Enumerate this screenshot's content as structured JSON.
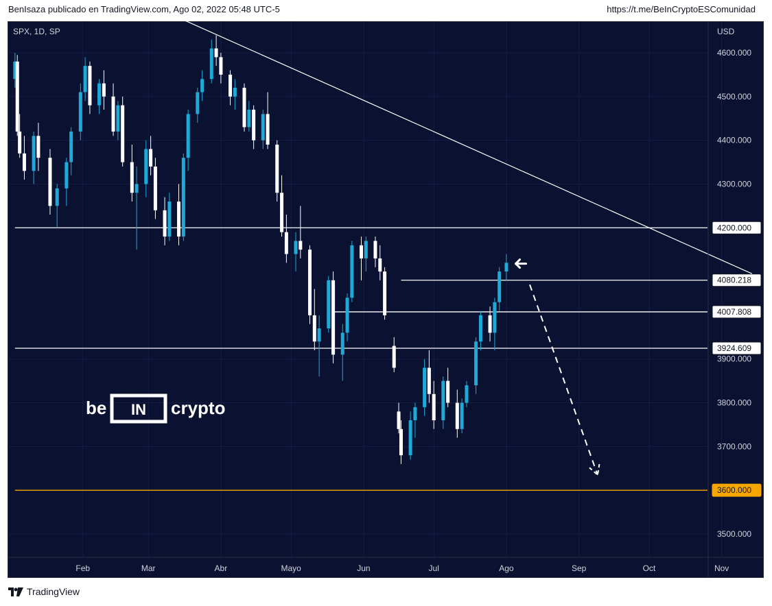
{
  "header": {
    "publisher_line": "BenIsaza publicado en TradingView.com, Ago 02, 2022 05:48 UTC-5",
    "link": "https://t.me/BeInCryptoESComunidad"
  },
  "footer": {
    "brand": "TradingView",
    "logo_icon": "tradingview-logo-icon"
  },
  "watermark": {
    "text_left": "be",
    "text_box": "IN",
    "text_right": "crypto"
  },
  "colors": {
    "background": "#0b1131",
    "bull": "#1fa9d6",
    "bear": "#ffffff",
    "support_line": "#ffffff",
    "target_line": "#f7a600",
    "target_label_bg": "#f7a600"
  },
  "chart_data": {
    "type": "candlestick",
    "symbol_label": "SPX, 1D, SP",
    "currency": "USD",
    "y_ticks": [
      "4600.000",
      "4500.000",
      "4400.000",
      "4300.000",
      "3900.000",
      "3800.000",
      "3700.000",
      "3500.000"
    ],
    "y_tick_values": [
      4600,
      4500,
      4400,
      4300,
      3900,
      3800,
      3700,
      3500
    ],
    "x_ticks": [
      "Feb",
      "Mar",
      "Abr",
      "Mayo",
      "Jun",
      "Jul",
      "Ago",
      "Sep",
      "Oct",
      "Nov"
    ],
    "ylim": [
      3430,
      4660
    ],
    "horizontal_levels": [
      {
        "label": "4200.000",
        "value": 4200,
        "style": "solid",
        "color": "#ffffff",
        "start_date": "2022-01-03"
      },
      {
        "label": "4080.218",
        "value": 4080.218,
        "style": "solid",
        "color": "#ffffff",
        "start_date": "2022-06-17"
      },
      {
        "label": "4007.808",
        "value": 4007.808,
        "style": "solid",
        "color": "#ffffff",
        "start_date": "2022-05-19"
      },
      {
        "label": "3924.609",
        "value": 3924.609,
        "style": "solid",
        "color": "#ffffff",
        "start_date": "2022-01-03"
      },
      {
        "label": "3600.000",
        "value": 3600,
        "style": "solid",
        "color": "#f7a600",
        "start_date": "2022-01-03"
      }
    ],
    "trendline": {
      "from": [
        "2022-03-14",
        4680
      ],
      "to": [
        "2022-11-14",
        4095
      ]
    },
    "projection_arrow": {
      "from": [
        "2022-08-11",
        4070
      ],
      "to": [
        "2022-09-09",
        3635
      ],
      "style": "dashed"
    },
    "pointer_arrow": {
      "at": [
        "2022-08-05",
        4118
      ],
      "direction": "left"
    },
    "ohlc": [
      [
        "2022-01-03",
        4540,
        4600,
        4520,
        4580
      ],
      [
        "2022-01-04",
        4580,
        4595,
        4410,
        4420
      ],
      [
        "2022-01-05",
        4420,
        4460,
        4360,
        4370
      ],
      [
        "2022-01-07",
        4370,
        4410,
        4310,
        4330
      ],
      [
        "2022-01-11",
        4330,
        4420,
        4300,
        4410
      ],
      [
        "2022-01-13",
        4410,
        4440,
        4330,
        4360
      ],
      [
        "2022-01-18",
        4360,
        4380,
        4230,
        4250
      ],
      [
        "2022-01-21",
        4250,
        4300,
        4200,
        4290
      ],
      [
        "2022-01-25",
        4290,
        4360,
        4250,
        4350
      ],
      [
        "2022-01-27",
        4350,
        4430,
        4320,
        4420
      ],
      [
        "2022-01-31",
        4420,
        4530,
        4400,
        4510
      ],
      [
        "2022-02-02",
        4510,
        4590,
        4490,
        4570
      ],
      [
        "2022-02-04",
        4570,
        4580,
        4460,
        4480
      ],
      [
        "2022-02-08",
        4480,
        4540,
        4460,
        4530
      ],
      [
        "2022-02-10",
        4530,
        4560,
        4470,
        4500
      ],
      [
        "2022-02-14",
        4500,
        4530,
        4410,
        4420
      ],
      [
        "2022-02-16",
        4420,
        4490,
        4400,
        4480
      ],
      [
        "2022-02-18",
        4480,
        4500,
        4340,
        4350
      ],
      [
        "2022-02-22",
        4350,
        4390,
        4260,
        4280
      ],
      [
        "2022-02-24",
        4280,
        4340,
        4150,
        4300
      ],
      [
        "2022-02-28",
        4300,
        4400,
        4270,
        4380
      ],
      [
        "2022-03-02",
        4380,
        4410,
        4320,
        4340
      ],
      [
        "2022-03-04",
        4340,
        4360,
        4220,
        4240
      ],
      [
        "2022-03-08",
        4240,
        4270,
        4160,
        4180
      ],
      [
        "2022-03-10",
        4180,
        4280,
        4170,
        4260
      ],
      [
        "2022-03-14",
        4260,
        4300,
        4160,
        4180
      ],
      [
        "2022-03-16",
        4180,
        4370,
        4170,
        4360
      ],
      [
        "2022-03-18",
        4360,
        4470,
        4330,
        4460
      ],
      [
        "2022-03-22",
        4460,
        4520,
        4440,
        4510
      ],
      [
        "2022-03-24",
        4510,
        4560,
        4490,
        4540
      ],
      [
        "2022-03-28",
        4540,
        4630,
        4530,
        4610
      ],
      [
        "2022-03-30",
        4610,
        4640,
        4570,
        4590
      ],
      [
        "2022-04-01",
        4590,
        4600,
        4530,
        4550
      ],
      [
        "2022-04-05",
        4550,
        4560,
        4480,
        4500
      ],
      [
        "2022-04-07",
        4500,
        4540,
        4470,
        4520
      ],
      [
        "2022-04-11",
        4520,
        4530,
        4420,
        4430
      ],
      [
        "2022-04-13",
        4430,
        4490,
        4420,
        4470
      ],
      [
        "2022-04-15",
        4470,
        4480,
        4380,
        4400
      ],
      [
        "2022-04-19",
        4400,
        4470,
        4380,
        4460
      ],
      [
        "2022-04-21",
        4460,
        4510,
        4380,
        4390
      ],
      [
        "2022-04-25",
        4390,
        4400,
        4260,
        4280
      ],
      [
        "2022-04-27",
        4280,
        4320,
        4180,
        4190
      ],
      [
        "2022-04-29",
        4190,
        4230,
        4120,
        4140
      ],
      [
        "2022-05-03",
        4140,
        4190,
        4100,
        4170
      ],
      [
        "2022-05-05",
        4170,
        4250,
        4130,
        4150
      ],
      [
        "2022-05-09",
        4150,
        4160,
        3980,
        4000
      ],
      [
        "2022-05-11",
        4000,
        4060,
        3920,
        3940
      ],
      [
        "2022-05-13",
        3940,
        4000,
        3860,
        3970
      ],
      [
        "2022-05-17",
        3970,
        4090,
        3960,
        4080
      ],
      [
        "2022-05-19",
        4080,
        4100,
        3890,
        3910
      ],
      [
        "2022-05-23",
        3910,
        3980,
        3850,
        3960
      ],
      [
        "2022-05-25",
        3960,
        4050,
        3940,
        4040
      ],
      [
        "2022-05-27",
        4040,
        4170,
        4030,
        4160
      ],
      [
        "2022-05-31",
        4160,
        4180,
        4080,
        4130
      ],
      [
        "2022-06-02",
        4130,
        4180,
        4100,
        4170
      ],
      [
        "2022-06-06",
        4170,
        4180,
        4110,
        4130
      ],
      [
        "2022-06-08",
        4130,
        4160,
        4080,
        4100
      ],
      [
        "2022-06-10",
        4100,
        4110,
        3990,
        4000
      ],
      [
        "2022-06-14",
        3930,
        3950,
        3870,
        3880
      ],
      [
        "2022-06-16",
        3780,
        3800,
        3730,
        3740
      ],
      [
        "2022-06-17",
        3740,
        3760,
        3660,
        3680
      ],
      [
        "2022-06-21",
        3680,
        3780,
        3670,
        3760
      ],
      [
        "2022-06-23",
        3760,
        3800,
        3720,
        3790
      ],
      [
        "2022-06-27",
        3790,
        3900,
        3770,
        3880
      ],
      [
        "2022-06-29",
        3880,
        3920,
        3800,
        3820
      ],
      [
        "2022-07-01",
        3820,
        3850,
        3740,
        3760
      ],
      [
        "2022-07-05",
        3760,
        3860,
        3740,
        3850
      ],
      [
        "2022-07-07",
        3850,
        3880,
        3790,
        3800
      ],
      [
        "2022-07-11",
        3800,
        3830,
        3720,
        3740
      ],
      [
        "2022-07-13",
        3740,
        3810,
        3730,
        3800
      ],
      [
        "2022-07-15",
        3800,
        3850,
        3790,
        3840
      ],
      [
        "2022-07-19",
        3840,
        3950,
        3820,
        3940
      ],
      [
        "2022-07-21",
        3940,
        4010,
        3920,
        4000
      ],
      [
        "2022-07-25",
        4000,
        4020,
        3940,
        3960
      ],
      [
        "2022-07-27",
        3960,
        4040,
        3920,
        4030
      ],
      [
        "2022-07-29",
        4030,
        4110,
        4010,
        4100
      ],
      [
        "2022-08-01",
        4100,
        4140,
        4080,
        4120
      ]
    ]
  }
}
